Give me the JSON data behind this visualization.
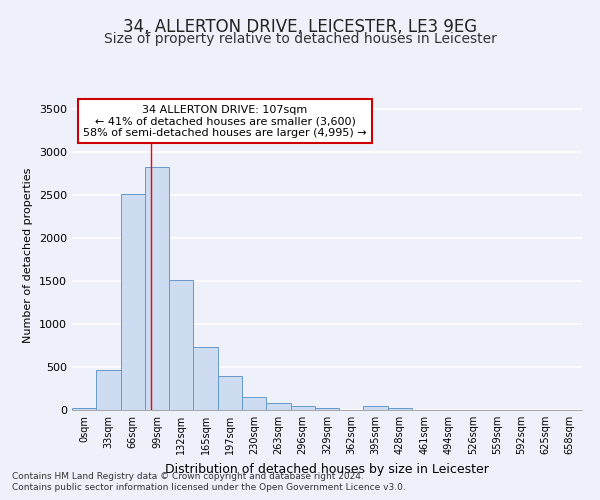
{
  "title1": "34, ALLERTON DRIVE, LEICESTER, LE3 9EG",
  "title2": "Size of property relative to detached houses in Leicester",
  "xlabel": "Distribution of detached houses by size in Leicester",
  "ylabel": "Number of detached properties",
  "bin_labels": [
    "0sqm",
    "33sqm",
    "66sqm",
    "99sqm",
    "132sqm",
    "165sqm",
    "197sqm",
    "230sqm",
    "263sqm",
    "296sqm",
    "329sqm",
    "362sqm",
    "395sqm",
    "428sqm",
    "461sqm",
    "494sqm",
    "526sqm",
    "559sqm",
    "592sqm",
    "625sqm",
    "658sqm"
  ],
  "bar_heights": [
    25,
    470,
    2510,
    2820,
    1510,
    730,
    395,
    155,
    80,
    45,
    25,
    0,
    50,
    20,
    0,
    0,
    0,
    0,
    0,
    0,
    0
  ],
  "bar_color": "#cddcf0",
  "bar_edge_color": "#6699cc",
  "bar_width": 1.0,
  "ylim": [
    0,
    3600
  ],
  "yticks": [
    0,
    500,
    1000,
    1500,
    2000,
    2500,
    3000,
    3500
  ],
  "red_line_x": 3.24,
  "annotation_title": "34 ALLERTON DRIVE: 107sqm",
  "annotation_line1": "← 41% of detached houses are smaller (3,600)",
  "annotation_line2": "58% of semi-detached houses are larger (4,995) →",
  "annotation_box_color": "#ffffff",
  "annotation_box_edge": "#cc0000",
  "footnote1": "Contains HM Land Registry data © Crown copyright and database right 2024.",
  "footnote2": "Contains public sector information licensed under the Open Government Licence v3.0.",
  "bg_color": "#eef1fa",
  "grid_color": "#ffffff",
  "title1_fontsize": 12,
  "title2_fontsize": 10,
  "ylabel_fontsize": 8,
  "xlabel_fontsize": 9
}
